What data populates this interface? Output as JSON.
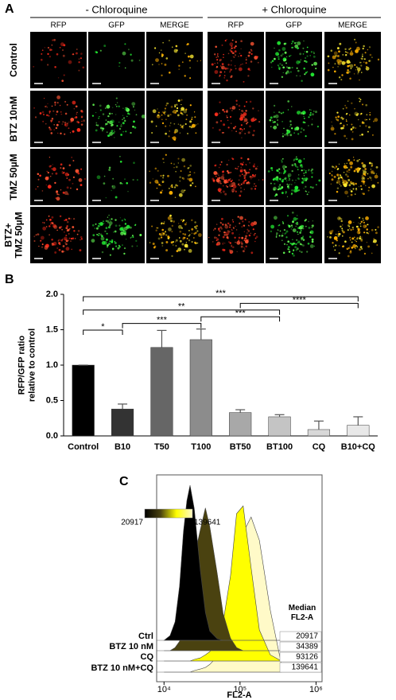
{
  "panel_a": {
    "label": "A",
    "groups": [
      "- Chloroquine",
      "+ Chloroquine"
    ],
    "columns": [
      "RFP",
      "GFP",
      "MERGE",
      "RFP",
      "GFP",
      "MERGE"
    ],
    "rows": [
      [
        "Control"
      ],
      [
        "BTZ 10nM"
      ],
      [
        "TMZ 50µM"
      ],
      [
        "BTZ+",
        "TMZ 50µM"
      ]
    ]
  },
  "chart_data": [
    {
      "type": "bar",
      "label": "B",
      "ylabel": [
        "RFP/GFP ratio",
        "relative to control"
      ],
      "categories": [
        "Control",
        "B10",
        "T50",
        "T100",
        "BT50",
        "BT100",
        "CQ",
        "B10+CQ"
      ],
      "values": [
        1.0,
        0.38,
        1.25,
        1.36,
        0.33,
        0.27,
        0.09,
        0.15
      ],
      "errors": [
        0,
        0.07,
        0.24,
        0.15,
        0.04,
        0.03,
        0.12,
        0.12
      ],
      "colors": [
        "#000000",
        "#333333",
        "#666666",
        "#8c8c8c",
        "#a8a8a8",
        "#c4c4c4",
        "#d8d8d8",
        "#e8e8e8"
      ],
      "ylim": [
        0,
        2.0
      ],
      "yticks": [
        {
          "value": 0,
          "label": "0.0"
        },
        0.5,
        {
          "value": 1,
          "label": "1.0"
        },
        1.5,
        {
          "value": 2,
          "label": "2.0"
        }
      ],
      "significance": [
        {
          "label": "*",
          "between": [
            "Control",
            "B10"
          ]
        },
        {
          "label": "***",
          "between": [
            "B10",
            "T100"
          ]
        },
        {
          "label": "***",
          "between": [
            "T100",
            "BT100"
          ]
        },
        {
          "label": "**",
          "between": [
            "Control",
            "BT100"
          ]
        },
        {
          "label": "****",
          "between": [
            "BT50",
            "B10+CQ"
          ]
        },
        {
          "label": "***",
          "between": [
            "Control",
            "B10+CQ"
          ]
        }
      ]
    },
    {
      "type": "density",
      "label": "C",
      "xlabel": "FL2-A",
      "xlog": true,
      "median_header": [
        "Median",
        "FL2-A"
      ],
      "x": [
        10000,
        12000,
        14000,
        16000,
        18000,
        20000,
        22000,
        25000,
        30000,
        35000,
        40000,
        50000,
        60000,
        75000,
        90000,
        110000,
        140000,
        180000,
        250000,
        350000
      ],
      "xlim": [
        8000,
        1200000
      ],
      "xticks": [
        {
          "value": 10000,
          "label": "10⁴"
        },
        {
          "value": 100000,
          "label": "10⁵"
        },
        {
          "value": 1000000,
          "label": "10⁶"
        }
      ],
      "series": [
        {
          "name": "Ctrl",
          "color": "#000000",
          "median": 20917,
          "values": [
            0,
            3,
            12,
            35,
            70,
            90,
            100,
            85,
            45,
            18,
            6,
            1,
            0,
            0,
            0,
            0,
            0,
            0,
            0,
            0
          ]
        },
        {
          "name": "BTZ 10 nM",
          "color": "#4a4210",
          "median": 34389,
          "values": [
            0,
            0,
            2,
            6,
            15,
            30,
            45,
            60,
            78,
            92,
            80,
            50,
            24,
            8,
            2,
            0,
            0,
            0,
            0,
            0
          ]
        },
        {
          "name": "CQ",
          "color": "#ffff00",
          "median": 93126,
          "values": [
            0,
            0,
            0,
            0,
            0,
            0,
            0,
            1,
            2,
            4,
            6,
            12,
            25,
            55,
            95,
            100,
            60,
            20,
            4,
            0
          ]
        },
        {
          "name": "BTZ 10 nM+CQ",
          "color": "#fffac8",
          "median": 139641,
          "values": [
            0,
            0,
            0,
            0,
            0,
            0,
            0,
            1,
            2,
            3,
            5,
            10,
            20,
            40,
            65,
            90,
            100,
            85,
            40,
            5
          ]
        }
      ]
    }
  ]
}
